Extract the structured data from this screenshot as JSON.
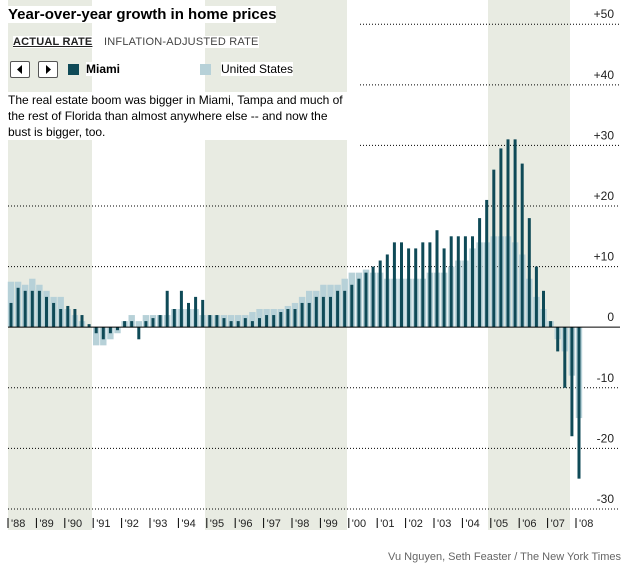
{
  "chart_data": {
    "type": "bar",
    "title": "Year-over-year growth in home prices",
    "tabs": [
      "ACTUAL RATE",
      "INFLATION-ADJUSTED RATE"
    ],
    "annotation": "The real estate boom was bigger in Miami, Tampa and much of the rest of Florida than almost anywhere else -- and now the bust is bigger, too.",
    "source": "Vu Nguyen, Seth Feaster / The New York Times",
    "categories": [
      "'88",
      null,
      null,
      null,
      "'89",
      null,
      null,
      null,
      "'90",
      null,
      null,
      null,
      "'91",
      null,
      null,
      null,
      "'92",
      null,
      null,
      null,
      "'93",
      null,
      null,
      null,
      "'94",
      null,
      null,
      null,
      "'95",
      null,
      null,
      null,
      "'96",
      null,
      null,
      null,
      "'97",
      null,
      null,
      null,
      "'98",
      null,
      null,
      null,
      "'99",
      null,
      null,
      null,
      "'00",
      null,
      null,
      null,
      "'01",
      null,
      null,
      null,
      "'02",
      null,
      null,
      null,
      "'03",
      null,
      null,
      null,
      "'04",
      null,
      null,
      null,
      "'05",
      null,
      null,
      null,
      "'06",
      null,
      null,
      null,
      "'07",
      null,
      null,
      null,
      "'08"
    ],
    "series": [
      {
        "name": "United States",
        "color": "#b7d1d8",
        "values": [
          7.5,
          7.5,
          7,
          8,
          7,
          6,
          5,
          5,
          3,
          2,
          1,
          0,
          -3,
          -3,
          -2,
          -1,
          1,
          2,
          1,
          2,
          2,
          2,
          2,
          3,
          3,
          3,
          3,
          2,
          2,
          2,
          2,
          2,
          2,
          2,
          2.5,
          3,
          3,
          3,
          3,
          3.5,
          4,
          5,
          6,
          6,
          7,
          7,
          7,
          8,
          9,
          9,
          9.5,
          9,
          9,
          8,
          8,
          8,
          8,
          8,
          8,
          9,
          9,
          9,
          10,
          11,
          11,
          13,
          14,
          14,
          15,
          15,
          15,
          14,
          12,
          8,
          5,
          3,
          1,
          -2,
          -4,
          -8,
          -15
        ]
      },
      {
        "name": "Miami",
        "color": "#0f4a57",
        "values": [
          4,
          6.5,
          6,
          6,
          6,
          5,
          4,
          3,
          3.5,
          3,
          2,
          0.5,
          -1,
          -2,
          -1,
          -0.5,
          1,
          1,
          -2,
          1,
          1.5,
          2,
          6,
          3,
          6,
          4,
          5,
          4.5,
          2,
          2,
          1.5,
          1,
          1,
          1.5,
          1,
          1.5,
          2,
          2,
          2.5,
          3,
          3,
          4,
          4,
          5,
          5,
          5,
          6,
          6,
          7,
          8,
          9,
          10,
          11,
          12,
          14,
          14,
          13,
          13,
          14,
          14,
          16,
          13,
          15,
          15,
          15,
          15,
          18,
          21,
          26,
          29.5,
          31,
          31,
          27,
          18,
          10,
          6,
          1,
          -4,
          -10,
          -18,
          -25
        ]
      }
    ],
    "ylim": [
      -31,
      54
    ],
    "yticks": [
      {
        "value": 50,
        "label": "+50"
      },
      {
        "value": 40,
        "label": "+40"
      },
      {
        "value": 30,
        "label": "+30"
      },
      {
        "value": 20,
        "label": "+20"
      },
      {
        "value": 10,
        "label": "+10"
      },
      0,
      -10,
      -20,
      -30
    ],
    "grid": true
  }
}
